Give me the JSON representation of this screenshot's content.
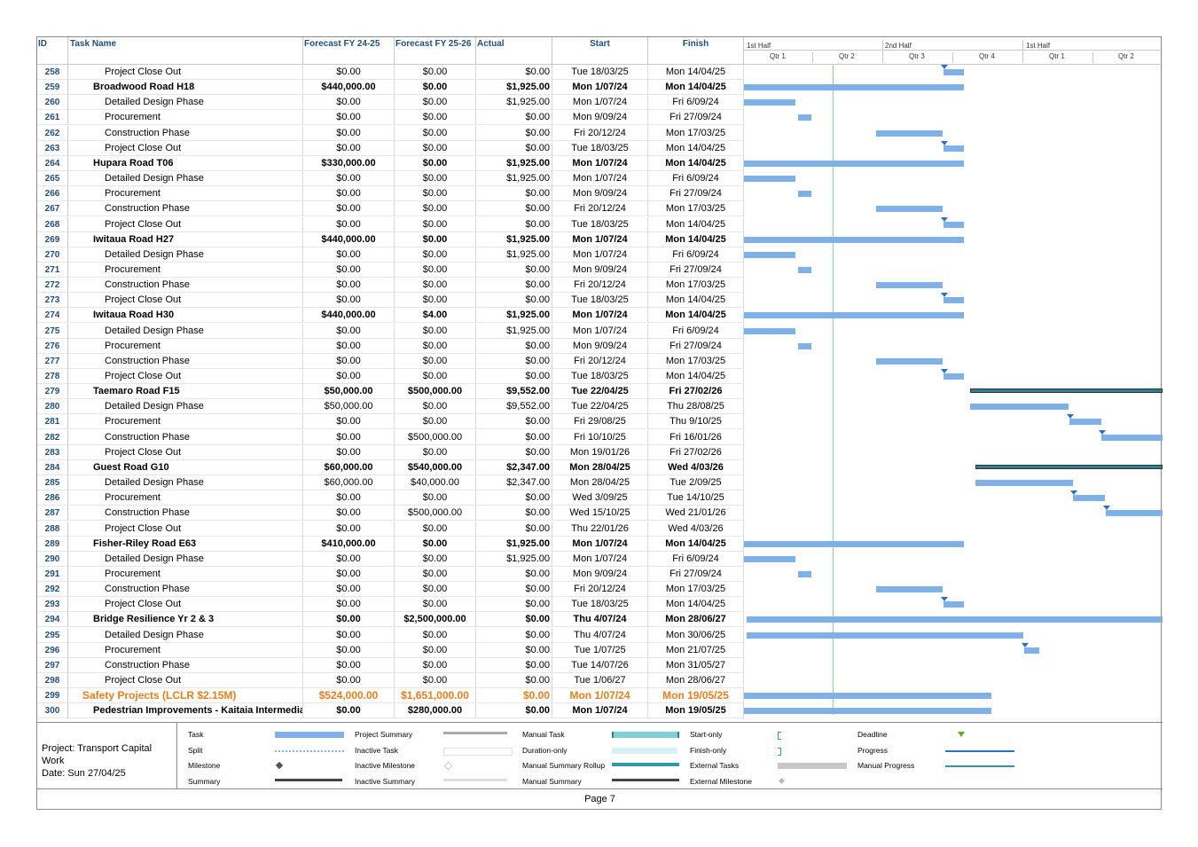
{
  "columns": {
    "id": "ID",
    "name": "Task Name",
    "fy24": "Forecast FY 24-25",
    "fy25": "Forecast FY 25-26",
    "actual": "Actual",
    "start": "Start",
    "finish": "Finish"
  },
  "timeline": {
    "halves": [
      "1st Half",
      "2nd Half",
      "1st Half"
    ],
    "quarters": [
      "Qtr 1",
      "Qtr 2",
      "Qtr 3",
      "Qtr 4",
      "Qtr 1",
      "Qtr 2"
    ]
  },
  "rows": [
    {
      "id": "258",
      "name": "Project Close Out",
      "fy24": "$0.00",
      "fy25": "$0.00",
      "actual": "$0.00",
      "start": "Tue 18/03/25",
      "finish": "Mon 14/04/25",
      "level": "sub"
    },
    {
      "id": "259",
      "name": "Broadwood Road H18",
      "fy24": "$440,000.00",
      "fy25": "$0.00",
      "actual": "$1,925.00",
      "start": "Mon 1/07/24",
      "finish": "Mon 14/04/25",
      "level": "sum"
    },
    {
      "id": "260",
      "name": "Detailed Design Phase",
      "fy24": "$0.00",
      "fy25": "$0.00",
      "actual": "$1,925.00",
      "start": "Mon 1/07/24",
      "finish": "Fri 6/09/24",
      "level": "sub"
    },
    {
      "id": "261",
      "name": "Procurement",
      "fy24": "$0.00",
      "fy25": "$0.00",
      "actual": "$0.00",
      "start": "Mon 9/09/24",
      "finish": "Fri 27/09/24",
      "level": "sub"
    },
    {
      "id": "262",
      "name": "Construction Phase",
      "fy24": "$0.00",
      "fy25": "$0.00",
      "actual": "$0.00",
      "start": "Fri 20/12/24",
      "finish": "Mon 17/03/25",
      "level": "sub"
    },
    {
      "id": "263",
      "name": "Project Close Out",
      "fy24": "$0.00",
      "fy25": "$0.00",
      "actual": "$0.00",
      "start": "Tue 18/03/25",
      "finish": "Mon 14/04/25",
      "level": "sub"
    },
    {
      "id": "264",
      "name": "Hupara Road T06",
      "fy24": "$330,000.00",
      "fy25": "$0.00",
      "actual": "$1,925.00",
      "start": "Mon 1/07/24",
      "finish": "Mon 14/04/25",
      "level": "sum"
    },
    {
      "id": "265",
      "name": "Detailed Design Phase",
      "fy24": "$0.00",
      "fy25": "$0.00",
      "actual": "$1,925.00",
      "start": "Mon 1/07/24",
      "finish": "Fri 6/09/24",
      "level": "sub"
    },
    {
      "id": "266",
      "name": "Procurement",
      "fy24": "$0.00",
      "fy25": "$0.00",
      "actual": "$0.00",
      "start": "Mon 9/09/24",
      "finish": "Fri 27/09/24",
      "level": "sub"
    },
    {
      "id": "267",
      "name": "Construction Phase",
      "fy24": "$0.00",
      "fy25": "$0.00",
      "actual": "$0.00",
      "start": "Fri 20/12/24",
      "finish": "Mon 17/03/25",
      "level": "sub"
    },
    {
      "id": "268",
      "name": "Project Close Out",
      "fy24": "$0.00",
      "fy25": "$0.00",
      "actual": "$0.00",
      "start": "Tue 18/03/25",
      "finish": "Mon 14/04/25",
      "level": "sub"
    },
    {
      "id": "269",
      "name": "Iwitaua Road H27",
      "fy24": "$440,000.00",
      "fy25": "$0.00",
      "actual": "$1,925.00",
      "start": "Mon 1/07/24",
      "finish": "Mon 14/04/25",
      "level": "sum"
    },
    {
      "id": "270",
      "name": "Detailed Design Phase",
      "fy24": "$0.00",
      "fy25": "$0.00",
      "actual": "$1,925.00",
      "start": "Mon 1/07/24",
      "finish": "Fri 6/09/24",
      "level": "sub"
    },
    {
      "id": "271",
      "name": "Procurement",
      "fy24": "$0.00",
      "fy25": "$0.00",
      "actual": "$0.00",
      "start": "Mon 9/09/24",
      "finish": "Fri 27/09/24",
      "level": "sub"
    },
    {
      "id": "272",
      "name": "Construction Phase",
      "fy24": "$0.00",
      "fy25": "$0.00",
      "actual": "$0.00",
      "start": "Fri 20/12/24",
      "finish": "Mon 17/03/25",
      "level": "sub"
    },
    {
      "id": "273",
      "name": "Project Close Out",
      "fy24": "$0.00",
      "fy25": "$0.00",
      "actual": "$0.00",
      "start": "Tue 18/03/25",
      "finish": "Mon 14/04/25",
      "level": "sub"
    },
    {
      "id": "274",
      "name": "Iwitaua Road H30",
      "fy24": "$440,000.00",
      "fy25": "$4.00",
      "actual": "$1,925.00",
      "start": "Mon 1/07/24",
      "finish": "Mon 14/04/25",
      "level": "sum"
    },
    {
      "id": "275",
      "name": "Detailed Design Phase",
      "fy24": "$0.00",
      "fy25": "$0.00",
      "actual": "$1,925.00",
      "start": "Mon 1/07/24",
      "finish": "Fri 6/09/24",
      "level": "sub"
    },
    {
      "id": "276",
      "name": "Procurement",
      "fy24": "$0.00",
      "fy25": "$0.00",
      "actual": "$0.00",
      "start": "Mon 9/09/24",
      "finish": "Fri 27/09/24",
      "level": "sub"
    },
    {
      "id": "277",
      "name": "Construction Phase",
      "fy24": "$0.00",
      "fy25": "$0.00",
      "actual": "$0.00",
      "start": "Fri 20/12/24",
      "finish": "Mon 17/03/25",
      "level": "sub"
    },
    {
      "id": "278",
      "name": "Project Close Out",
      "fy24": "$0.00",
      "fy25": "$0.00",
      "actual": "$0.00",
      "start": "Tue 18/03/25",
      "finish": "Mon 14/04/25",
      "level": "sub"
    },
    {
      "id": "279",
      "name": "Taemaro Road F15",
      "fy24": "$50,000.00",
      "fy25": "$500,000.00",
      "actual": "$9,552.00",
      "start": "Tue 22/04/25",
      "finish": "Fri 27/02/26",
      "level": "sum"
    },
    {
      "id": "280",
      "name": "Detailed Design Phase",
      "fy24": "$50,000.00",
      "fy25": "$0.00",
      "actual": "$9,552.00",
      "start": "Tue 22/04/25",
      "finish": "Thu 28/08/25",
      "level": "sub"
    },
    {
      "id": "281",
      "name": "Procurement",
      "fy24": "$0.00",
      "fy25": "$0.00",
      "actual": "$0.00",
      "start": "Fri 29/08/25",
      "finish": "Thu 9/10/25",
      "level": "sub"
    },
    {
      "id": "282",
      "name": "Construction Phase",
      "fy24": "$0.00",
      "fy25": "$500,000.00",
      "actual": "$0.00",
      "start": "Fri 10/10/25",
      "finish": "Fri 16/01/26",
      "level": "sub"
    },
    {
      "id": "283",
      "name": "Project Close Out",
      "fy24": "$0.00",
      "fy25": "$0.00",
      "actual": "$0.00",
      "start": "Mon 19/01/26",
      "finish": "Fri 27/02/26",
      "level": "sub"
    },
    {
      "id": "284",
      "name": "Guest Road G10",
      "fy24": "$60,000.00",
      "fy25": "$540,000.00",
      "actual": "$2,347.00",
      "start": "Mon 28/04/25",
      "finish": "Wed 4/03/26",
      "level": "sum"
    },
    {
      "id": "285",
      "name": "Detailed Design Phase",
      "fy24": "$60,000.00",
      "fy25": "$40,000.00",
      "actual": "$2,347.00",
      "start": "Mon 28/04/25",
      "finish": "Tue 2/09/25",
      "level": "sub"
    },
    {
      "id": "286",
      "name": "Procurement",
      "fy24": "$0.00",
      "fy25": "$0.00",
      "actual": "$0.00",
      "start": "Wed 3/09/25",
      "finish": "Tue 14/10/25",
      "level": "sub"
    },
    {
      "id": "287",
      "name": "Construction Phase",
      "fy24": "$0.00",
      "fy25": "$500,000.00",
      "actual": "$0.00",
      "start": "Wed 15/10/25",
      "finish": "Wed 21/01/26",
      "level": "sub"
    },
    {
      "id": "288",
      "name": "Project Close Out",
      "fy24": "$0.00",
      "fy25": "$0.00",
      "actual": "$0.00",
      "start": "Thu 22/01/26",
      "finish": "Wed 4/03/26",
      "level": "sub"
    },
    {
      "id": "289",
      "name": "Fisher-Riley Road E63",
      "fy24": "$410,000.00",
      "fy25": "$0.00",
      "actual": "$1,925.00",
      "start": "Mon 1/07/24",
      "finish": "Mon 14/04/25",
      "level": "sum"
    },
    {
      "id": "290",
      "name": "Detailed Design Phase",
      "fy24": "$0.00",
      "fy25": "$0.00",
      "actual": "$1,925.00",
      "start": "Mon 1/07/24",
      "finish": "Fri 6/09/24",
      "level": "sub"
    },
    {
      "id": "291",
      "name": "Procurement",
      "fy24": "$0.00",
      "fy25": "$0.00",
      "actual": "$0.00",
      "start": "Mon 9/09/24",
      "finish": "Fri 27/09/24",
      "level": "sub"
    },
    {
      "id": "292",
      "name": "Construction Phase",
      "fy24": "$0.00",
      "fy25": "$0.00",
      "actual": "$0.00",
      "start": "Fri 20/12/24",
      "finish": "Mon 17/03/25",
      "level": "sub"
    },
    {
      "id": "293",
      "name": "Project Close Out",
      "fy24": "$0.00",
      "fy25": "$0.00",
      "actual": "$0.00",
      "start": "Tue 18/03/25",
      "finish": "Mon 14/04/25",
      "level": "sub"
    },
    {
      "id": "294",
      "name": "Bridge Resilience Yr 2 & 3",
      "fy24": "$0.00",
      "fy25": "$2,500,000.00",
      "actual": "$0.00",
      "start": "Thu 4/07/24",
      "finish": "Mon 28/06/27",
      "level": "sum"
    },
    {
      "id": "295",
      "name": "Detailed Design Phase",
      "fy24": "$0.00",
      "fy25": "$0.00",
      "actual": "$0.00",
      "start": "Thu 4/07/24",
      "finish": "Mon 30/06/25",
      "level": "sub"
    },
    {
      "id": "296",
      "name": "Procurement",
      "fy24": "$0.00",
      "fy25": "$0.00",
      "actual": "$0.00",
      "start": "Tue 1/07/25",
      "finish": "Mon 21/07/25",
      "level": "sub"
    },
    {
      "id": "297",
      "name": "Construction Phase",
      "fy24": "$0.00",
      "fy25": "$0.00",
      "actual": "$0.00",
      "start": "Tue 14/07/26",
      "finish": "Mon 31/05/27",
      "level": "sub"
    },
    {
      "id": "298",
      "name": "Project Close Out",
      "fy24": "$0.00",
      "fy25": "$0.00",
      "actual": "$0.00",
      "start": "Tue 1/06/27",
      "finish": "Mon 28/06/27",
      "level": "sub"
    },
    {
      "id": "299",
      "name": "Safety Projects (LCLR $2.15M)",
      "fy24": "$524,000.00",
      "fy25": "$1,651,000.00",
      "actual": "$0.00",
      "start": "Mon 1/07/24",
      "finish": "Mon 19/05/25",
      "level": "top"
    },
    {
      "id": "300",
      "name": "Pedestrian Improvements - Kaitaia Intermediate",
      "fy24": "$0.00",
      "fy25": "$280,000.00",
      "actual": "$0.00",
      "start": "Mon 1/07/24",
      "finish": "Mon 19/05/25",
      "level": "sum"
    }
  ],
  "legend": {
    "project": "Project: Transport Capital Work",
    "date": "Date: Sun 27/04/25",
    "items": [
      "Task",
      "Split",
      "Milestone",
      "Summary",
      "Project Summary",
      "Inactive Task",
      "Inactive Milestone",
      "Inactive Summary",
      "Manual Task",
      "Duration-only",
      "Manual Summary Rollup",
      "Manual Summary",
      "Start-only",
      "Finish-only",
      "External Tasks",
      "External Milestone",
      "Deadline",
      "Progress",
      "Manual Progress"
    ]
  },
  "footer": {
    "page": "Page 7"
  },
  "colors": {
    "task": "#7fb1e6",
    "summary_fill": "#2e7f8f",
    "header_text": "#1f4e79",
    "highlight": "#e87d1e"
  }
}
